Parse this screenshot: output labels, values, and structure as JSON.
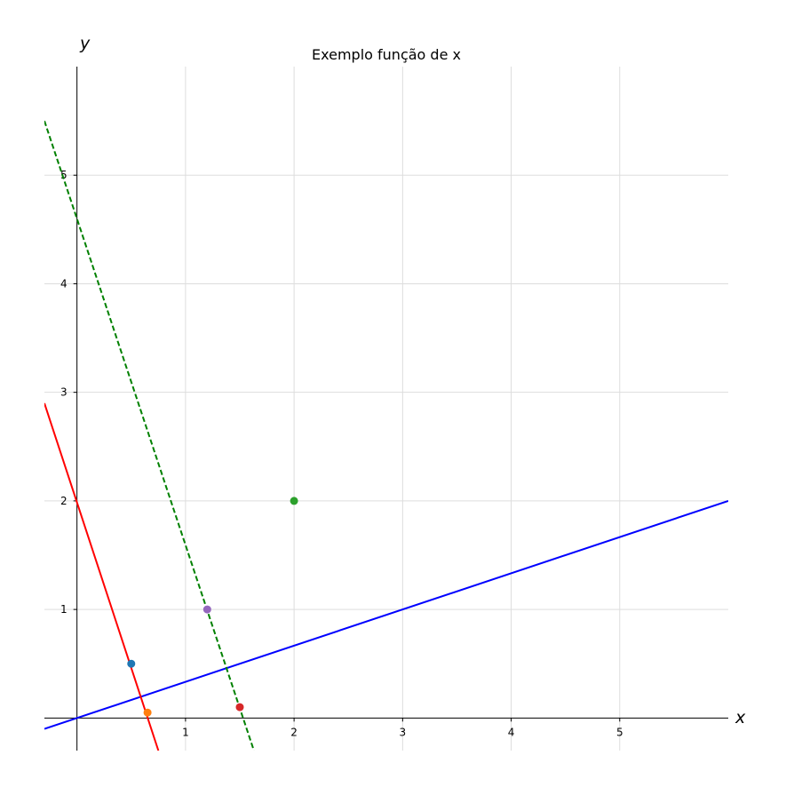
{
  "chart_data": {
    "type": "line",
    "title": "Exemplo função de x",
    "xlabel": "x",
    "ylabel": "y",
    "xlim": [
      -0.3,
      6.0
    ],
    "ylim": [
      -0.3,
      6.0
    ],
    "xticks": [
      1,
      2,
      3,
      4,
      5
    ],
    "yticks": [
      1,
      2,
      3,
      4,
      5
    ],
    "grid": true,
    "lines": [
      {
        "x": [
          -0.3,
          6.0
        ],
        "y": [
          -0.1,
          2.0
        ],
        "color": "#0000ff",
        "style": "solid"
      },
      {
        "x": [
          -0.3,
          0.75
        ],
        "y": [
          2.9,
          -0.3
        ],
        "color": "#ff0000",
        "style": "solid"
      },
      {
        "x": [
          -0.3,
          1.63
        ],
        "y": [
          5.5,
          -0.3
        ],
        "color": "#008000",
        "style": "dashed"
      }
    ],
    "points": [
      {
        "x": 0.5,
        "y": 0.5,
        "color": "#1f77b4"
      },
      {
        "x": 0.65,
        "y": 0.05,
        "color": "#ff7f0e"
      },
      {
        "x": 2.0,
        "y": 2.0,
        "color": "#2ca02c"
      },
      {
        "x": 1.5,
        "y": 0.1,
        "color": "#d62728"
      },
      {
        "x": 1.2,
        "y": 1.0,
        "color": "#9467bd"
      }
    ]
  }
}
